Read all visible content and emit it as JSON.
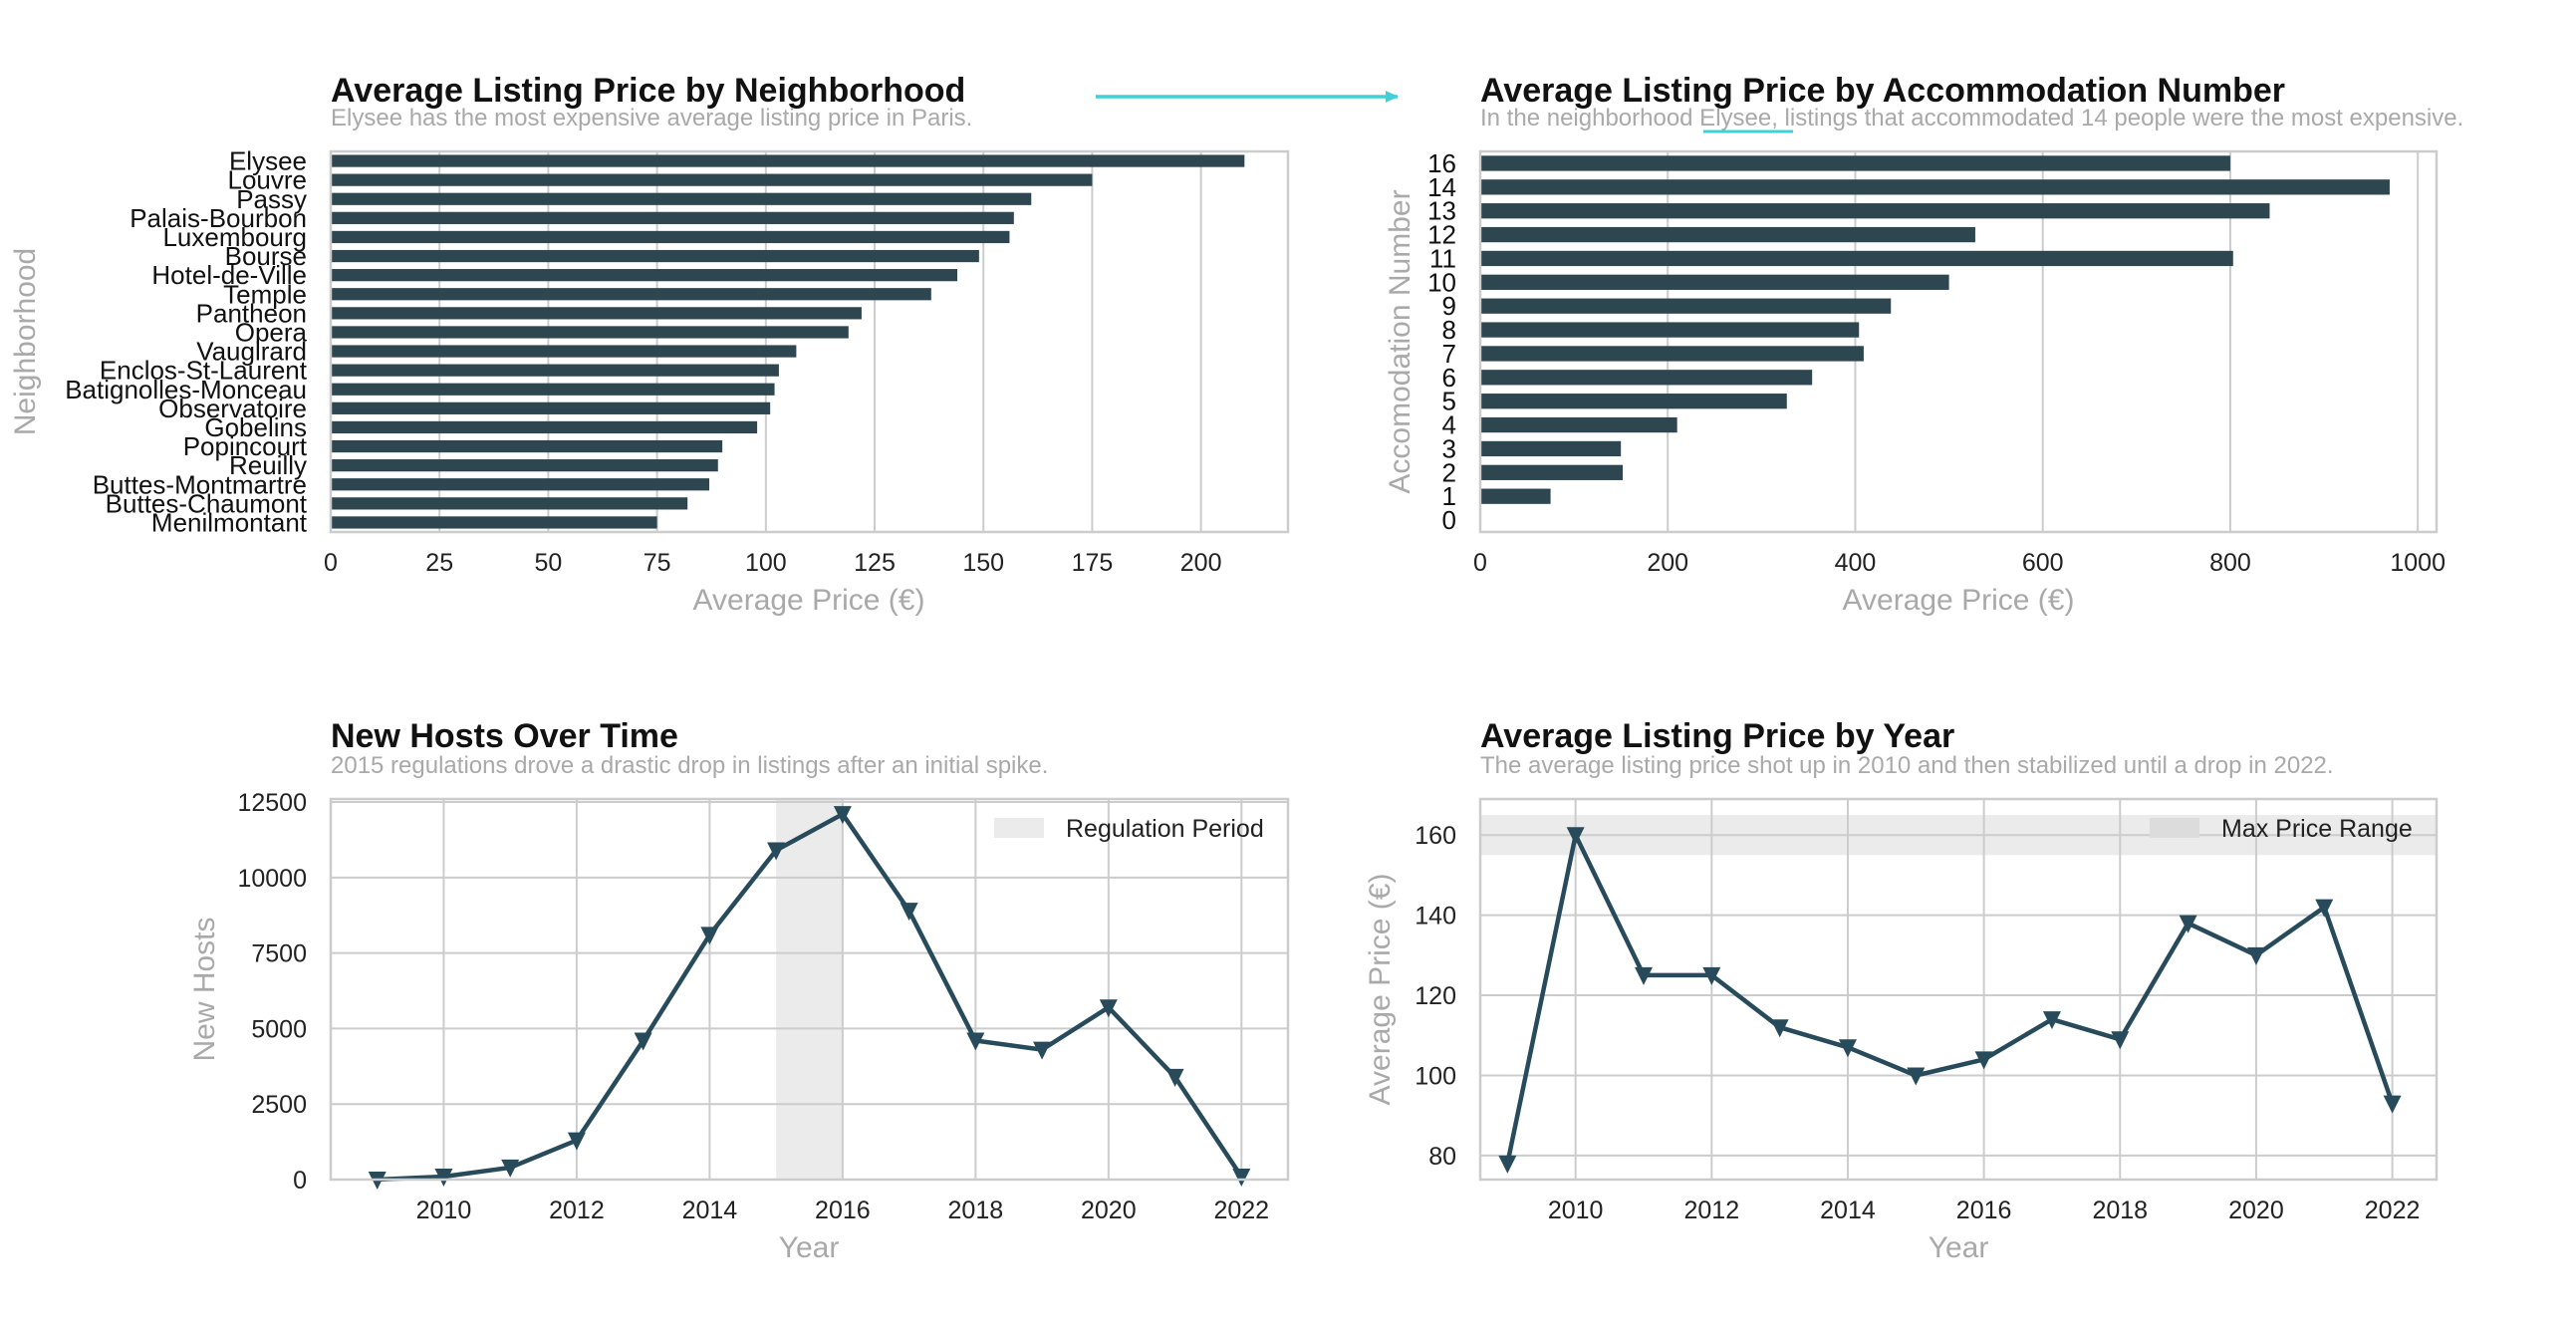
{
  "chart_data": [
    {
      "type": "bar",
      "orientation": "horizontal",
      "title": "Average Listing Price by Neighborhood",
      "subtitle": "Elysee has the most expensive average listing price in Paris.",
      "xlabel": "Average Price (€)",
      "ylabel": "Neighborhood",
      "xlim": [
        0,
        220
      ],
      "xticks": [
        0,
        25,
        50,
        75,
        100,
        125,
        150,
        175,
        200
      ],
      "grid": true,
      "color": "#2e4650",
      "categories": [
        "Elysee",
        "Louvre",
        "Passy",
        "Palais-Bourbon",
        "Luxembourg",
        "Bourse",
        "Hotel-de-Ville",
        "Temple",
        "Pantheon",
        "Opera",
        "Vaugirard",
        "Enclos-St-Laurent",
        "Batignolles-Monceau",
        "Observatoire",
        "Gobelins",
        "Popincourt",
        "Reuilly",
        "Buttes-Montmartre",
        "Buttes-Chaumont",
        "Menilmontant"
      ],
      "values": [
        210,
        175,
        161,
        157,
        156,
        149,
        144,
        138,
        122,
        119,
        107,
        103,
        102,
        101,
        98,
        90,
        89,
        87,
        82,
        75
      ]
    },
    {
      "type": "bar",
      "orientation": "horizontal",
      "title": "Average Listing Price by Accommodation Number",
      "subtitle": "In the neighborhood Elysee, listings that accommodated 14 people were the most expensive.",
      "xlabel": "Average Price (€)",
      "ylabel": "Accomodation Number",
      "xlim": [
        0,
        1020
      ],
      "xticks": [
        0,
        200,
        400,
        600,
        800,
        1000
      ],
      "grid": true,
      "color": "#2e4650",
      "categories": [
        "16",
        "14",
        "13",
        "12",
        "11",
        "10",
        "9",
        "8",
        "7",
        "6",
        "5",
        "4",
        "3",
        "2",
        "1",
        "0"
      ],
      "values": [
        800,
        970,
        842,
        528,
        803,
        500,
        438,
        404,
        409,
        354,
        327,
        210,
        150,
        152,
        75,
        0
      ]
    },
    {
      "type": "line",
      "title": "New Hosts Over Time",
      "subtitle": "2015 regulations drove a drastic drop in listings after an initial spike.",
      "xlabel": "Year",
      "ylabel": "New Hosts",
      "xlim": [
        2008.3,
        2022.7
      ],
      "ylim": [
        0,
        12600
      ],
      "xticks": [
        2010,
        2012,
        2014,
        2016,
        2018,
        2020,
        2022
      ],
      "yticks": [
        0,
        2500,
        5000,
        7500,
        10000,
        12500
      ],
      "grid": true,
      "color": "#284b5c",
      "marker": "triangle-down",
      "x": [
        2009,
        2010,
        2011,
        2012,
        2013,
        2014,
        2015,
        2016,
        2017,
        2018,
        2019,
        2020,
        2021,
        2022
      ],
      "y": [
        0,
        100,
        400,
        1300,
        4600,
        8100,
        10900,
        12100,
        8900,
        4600,
        4300,
        5700,
        3400,
        100
      ],
      "shaded_band": {
        "axis": "x",
        "from": 2015,
        "to": 2016,
        "color": "#ebebeb",
        "label": "Regulation Period"
      },
      "legend_position": "top-right"
    },
    {
      "type": "line",
      "title": "Average Listing Price by Year",
      "subtitle": "The average listing price shot up in 2010 and then stabilized until a drop in 2022.",
      "xlabel": "Year",
      "ylabel": "Average Price (€)",
      "xlim": [
        2008.6,
        2022.65
      ],
      "ylim": [
        74,
        169
      ],
      "xticks": [
        2010,
        2012,
        2014,
        2016,
        2018,
        2020,
        2022
      ],
      "yticks": [
        80,
        100,
        120,
        140,
        160
      ],
      "grid": true,
      "color": "#284b5c",
      "marker": "triangle-down",
      "x": [
        2009,
        2010,
        2011,
        2012,
        2013,
        2014,
        2015,
        2016,
        2017,
        2018,
        2019,
        2020,
        2021,
        2022
      ],
      "y": [
        78,
        160,
        125,
        125,
        112,
        107,
        100,
        104,
        114,
        109,
        138,
        130,
        142,
        93
      ],
      "shaded_band": {
        "axis": "y",
        "from": 155,
        "to": 165,
        "color": "#ebebeb",
        "label": "Max Price Range"
      },
      "legend_position": "top-right"
    }
  ],
  "annotation": {
    "arrow_color": "#40d0d8",
    "highlight_word": "Elysee"
  }
}
